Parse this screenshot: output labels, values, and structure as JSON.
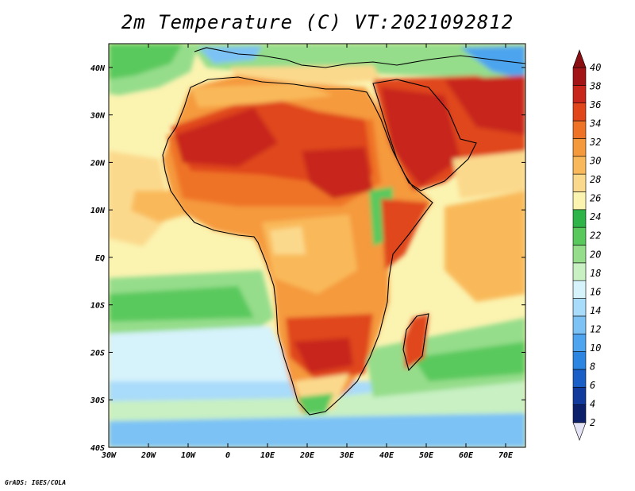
{
  "title": "2m Temperature (C) VT:2021092812",
  "credit": "GrADS: IGES/COLA",
  "map": {
    "lon_range": [
      -30,
      75
    ],
    "lat_range": [
      -40,
      45
    ],
    "lon_ticks": [
      "30W",
      "20W",
      "10W",
      "0",
      "10E",
      "20E",
      "30E",
      "40E",
      "50E",
      "60E",
      "70E"
    ],
    "lat_ticks": [
      "40N",
      "30N",
      "20N",
      "10N",
      "EQ",
      "10S",
      "20S",
      "30S",
      "40S"
    ]
  },
  "colorbar": {
    "labels": [
      "2",
      "4",
      "6",
      "8",
      "10",
      "12",
      "14",
      "16",
      "18",
      "20",
      "22",
      "24",
      "26",
      "28",
      "30",
      "32",
      "34",
      "36",
      "38",
      "40"
    ],
    "colors": [
      "#0b1f6b",
      "#123a9c",
      "#1a5fc8",
      "#2c85e0",
      "#4ea4ee",
      "#7cc2f5",
      "#a9dbfa",
      "#d6f2fb",
      "#c8f0c3",
      "#95dd8b",
      "#5ac95d",
      "#2fb44a",
      "#fbf3b0",
      "#fbd98c",
      "#f9b95a",
      "#f59a3c",
      "#ef7326",
      "#e0461a",
      "#c8261a",
      "#a31417"
    ],
    "over_color": "#8a0f12",
    "under_color": "#e4e4f6"
  },
  "regions": [
    {
      "name": "sahara-heat",
      "color": "#c8261a"
    },
    {
      "name": "arabia-heat",
      "color": "#c8261a"
    },
    {
      "name": "southern-ocean",
      "color": "#7cc2f5"
    },
    {
      "name": "southern-atlantic",
      "color": "#d6f2fb"
    },
    {
      "name": "indian-ocean",
      "color": "#f9b95a"
    }
  ]
}
